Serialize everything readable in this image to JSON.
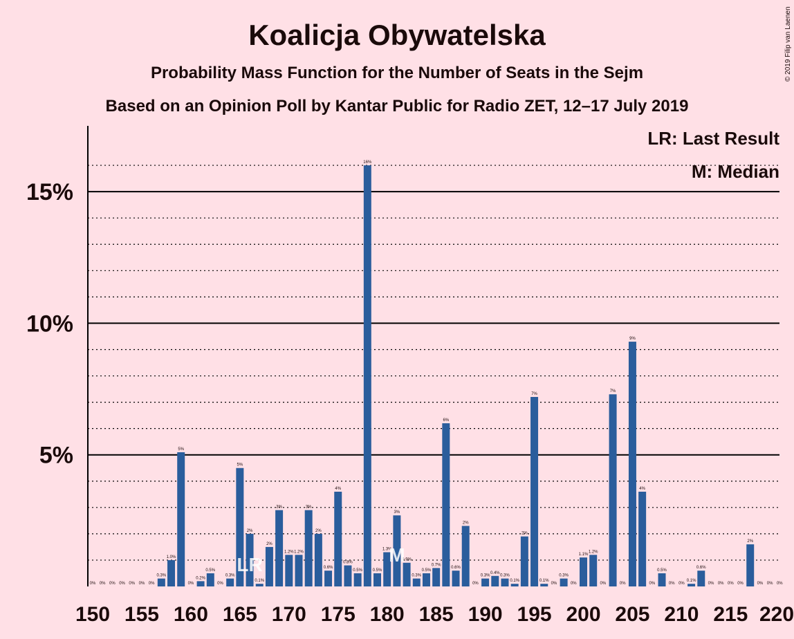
{
  "chart_data": {
    "type": "bar",
    "title": "Koalicja Obywatelska",
    "subtitle": "Probability Mass Function for the Number of Seats in the Sejm",
    "subtitle2": "Based on an Opinion Poll by Kantar Public for Radio ZET, 12–17 July 2019",
    "copyright": "© 2019 Filip van Laenen",
    "legend": {
      "lr": "LR: Last Result",
      "m": "M: Median"
    },
    "markers": {
      "lr_seat": 166,
      "lr_text": "LR",
      "median_seat": 181,
      "median_text": "M"
    },
    "bar_color": "#2a5d9c",
    "ylim": [
      0,
      17.5
    ],
    "yticks": [
      5,
      10,
      15
    ],
    "ytick_labels": [
      "5%",
      "10%",
      "15%"
    ],
    "xticks": [
      150,
      155,
      160,
      165,
      170,
      175,
      180,
      185,
      190,
      195,
      200,
      205,
      210,
      215,
      220
    ],
    "x": [
      150,
      151,
      152,
      153,
      154,
      155,
      156,
      157,
      158,
      159,
      160,
      161,
      162,
      163,
      164,
      165,
      166,
      167,
      168,
      169,
      170,
      171,
      172,
      173,
      174,
      175,
      176,
      177,
      178,
      179,
      180,
      181,
      182,
      183,
      184,
      185,
      186,
      187,
      188,
      189,
      190,
      191,
      192,
      193,
      194,
      195,
      196,
      197,
      198,
      199,
      200,
      201,
      202,
      203,
      204,
      205,
      206,
      207,
      208,
      209,
      210,
      211,
      212,
      213,
      214,
      215,
      216,
      217,
      218,
      219,
      220
    ],
    "values": [
      0,
      0,
      0,
      0,
      0,
      0,
      0,
      0.3,
      1.0,
      5.1,
      0,
      0.2,
      0.5,
      0,
      0.3,
      4.5,
      2.0,
      0.1,
      1.5,
      2.9,
      1.2,
      1.2,
      2.9,
      2.0,
      0.6,
      3.6,
      0.8,
      0.5,
      16.0,
      0.5,
      1.3,
      2.7,
      0.9,
      0.3,
      0.5,
      0.7,
      6.2,
      0.6,
      2.3,
      0,
      0.3,
      0.4,
      0.3,
      0.1,
      1.9,
      7.2,
      0.1,
      0,
      0.3,
      0,
      1.1,
      1.2,
      0,
      7.3,
      0,
      9.3,
      3.6,
      0,
      0.5,
      0,
      0,
      0.1,
      0.6,
      0,
      0,
      0,
      0,
      1.6,
      0,
      0,
      0
    ],
    "labels": [
      "0%",
      "0%",
      "0%",
      "0%",
      "0%",
      "0%",
      "0%",
      "0.3%",
      "1.0%",
      "5%",
      "0%",
      "0.2%",
      "0.5%",
      "0%",
      "0.3%",
      "5%",
      "2%",
      "0.1%",
      "2%",
      "3%",
      "1.2%",
      "1.2%",
      "3%",
      "2%",
      "0.6%",
      "4%",
      "0.8%",
      "0.5%",
      "16%",
      "0.5%",
      "1.3%",
      "3%",
      "0.9%",
      "0.3%",
      "0.5%",
      "0.7%",
      "6%",
      "0.6%",
      "2%",
      "0%",
      "0.3%",
      "0.4%",
      "0.3%",
      "0.1%",
      "2%",
      "7%",
      "0.1%",
      "0%",
      "0.3%",
      "0%",
      "1.1%",
      "1.2%",
      "0%",
      "7%",
      "0%",
      "9%",
      "4%",
      "0%",
      "0.5%",
      "0%",
      "0%",
      "0.1%",
      "0.6%",
      "0%",
      "0%",
      "0%",
      "0%",
      "2%",
      "0%",
      "0%",
      "0%"
    ]
  }
}
